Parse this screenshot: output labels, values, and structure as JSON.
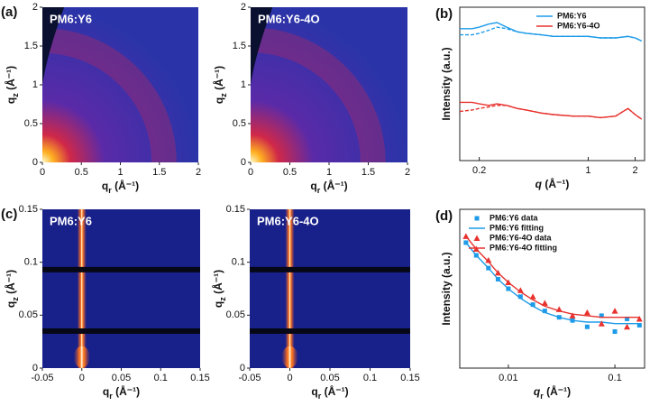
{
  "chart_data": [
    {
      "type": "image",
      "panel": "(a)",
      "title": "PM6:Y6",
      "pattern": "giwaxs",
      "xlabel": "q",
      "xlabel_sub": "r",
      "xlabel_unit": " (Å⁻¹)",
      "ylabel": "q",
      "ylabel_sub": "z",
      "ylabel_unit": " (Å⁻¹)",
      "xlim": [
        0,
        2
      ],
      "ylim": [
        0,
        2
      ],
      "xticks": [
        0,
        0.5,
        1,
        1.5,
        2
      ],
      "yticks": [
        0,
        0.5,
        1,
        1.5,
        2
      ]
    },
    {
      "type": "image",
      "title": "PM6:Y6-4O",
      "pattern": "giwaxs",
      "xlabel": "q",
      "xlabel_sub": "r",
      "xlabel_unit": " (Å⁻¹)",
      "ylabel": "q",
      "ylabel_sub": "z",
      "ylabel_unit": " (Å⁻¹)",
      "xlim": [
        0,
        2
      ],
      "ylim": [
        0,
        2
      ],
      "xticks": [
        0,
        0.5,
        1,
        1.5,
        2
      ],
      "yticks": [
        0,
        0.5,
        1,
        1.5,
        2
      ]
    },
    {
      "type": "line",
      "panel": "(b)",
      "xscale": "log",
      "legend": "upper right",
      "xlabel": "q",
      "xlabel_unit": " (Å⁻¹)",
      "ylabel": "Intensity (a.u.)",
      "xlim": [
        0.15,
        2.3
      ],
      "ylim": [
        0,
        10
      ],
      "xticks": [
        0.2,
        1,
        2
      ],
      "x": [
        0.15,
        0.18,
        0.2,
        0.23,
        0.26,
        0.3,
        0.35,
        0.4,
        0.5,
        0.6,
        0.8,
        1,
        1.2,
        1.5,
        1.8,
        2,
        2.2
      ],
      "series": [
        {
          "name": "PM6:Y6",
          "color": "#1e9be8",
          "values": [
            8.6,
            8.6,
            8.7,
            8.9,
            9.0,
            8.7,
            8.4,
            8.3,
            8.2,
            8.1,
            8.1,
            8.1,
            8.0,
            8.0,
            8.1,
            8.0,
            7.8
          ]
        },
        {
          "color": "#1e9be8",
          "dash": true,
          "values": [
            8.2,
            8.2,
            8.3,
            8.5,
            8.7,
            8.6,
            8.4,
            8.3,
            8.2,
            8.1,
            8.1,
            8.1,
            8.0,
            8.0,
            8.1,
            8.0,
            7.8
          ]
        },
        {
          "name": "PM6:Y6-4O",
          "color": "#e8322e",
          "values": [
            3.8,
            3.8,
            3.7,
            3.6,
            3.7,
            3.6,
            3.4,
            3.3,
            3.1,
            3.0,
            2.9,
            2.9,
            2.8,
            2.9,
            3.4,
            3.0,
            2.7
          ]
        },
        {
          "color": "#e8322e",
          "dash": true,
          "values": [
            3.2,
            3.3,
            3.4,
            3.5,
            3.6,
            3.6,
            3.4,
            3.3,
            3.1,
            3.0,
            2.9,
            2.9,
            2.8,
            2.9,
            3.4,
            3.0,
            2.7
          ]
        }
      ]
    },
    {
      "type": "image",
      "panel": "(c)",
      "title": "PM6:Y6",
      "pattern": "gisaxs",
      "xlabel": "q",
      "xlabel_sub": "r",
      "xlabel_unit": " (Å⁻¹)",
      "ylabel": "q",
      "ylabel_sub": "z",
      "ylabel_unit": " (Å⁻¹)",
      "xlim": [
        -0.05,
        0.15
      ],
      "ylim": [
        0,
        0.15
      ],
      "xticks": [
        -0.05,
        0,
        0.05,
        0.1,
        0.15
      ],
      "yticks": [
        0,
        0.05,
        0.1,
        0.15
      ]
    },
    {
      "type": "image",
      "title": "PM6:Y6-4O",
      "pattern": "gisaxs",
      "xlabel": "q",
      "xlabel_sub": "r",
      "xlabel_unit": " (Å⁻¹)",
      "ylabel": "q",
      "ylabel_sub": "z",
      "ylabel_unit": " (Å⁻¹)",
      "xlim": [
        -0.05,
        0.15
      ],
      "ylim": [
        0,
        0.15
      ],
      "xticks": [
        -0.05,
        0,
        0.05,
        0.1,
        0.15
      ],
      "yticks": [
        0,
        0.05,
        0.1,
        0.15
      ]
    },
    {
      "type": "scatter",
      "panel": "(d)",
      "xscale": "log",
      "legend": "upper left",
      "xlabel": "q",
      "xlabel_sub": "r",
      "xlabel_unit": " (Å⁻¹)",
      "ylabel": "Intensity (a.u.)",
      "xlim": [
        0.0035,
        0.19
      ],
      "ylim": [
        0,
        10
      ],
      "xticks": [
        0.01,
        0.1
      ],
      "x": [
        0.004,
        0.005,
        0.0065,
        0.008,
        0.01,
        0.013,
        0.017,
        0.022,
        0.03,
        0.04,
        0.055,
        0.075,
        0.1,
        0.13,
        0.17
      ],
      "series": [
        {
          "name": "PM6:Y6 data",
          "color": "#1e9be8",
          "marker": "square",
          "values": [
            7.9,
            7.1,
            6.3,
            5.6,
            5.0,
            4.5,
            4.0,
            3.6,
            3.2,
            3.0,
            2.6,
            3.3,
            2.3,
            3.1,
            2.7
          ]
        },
        {
          "name": "PM6:Y6 fitting",
          "color": "#1e9be8",
          "values": [
            7.9,
            7.1,
            6.3,
            5.6,
            5.0,
            4.4,
            3.9,
            3.5,
            3.2,
            3.0,
            2.9,
            2.9,
            2.8,
            2.8,
            2.8
          ]
        },
        {
          "name": "PM6:Y6-4O data",
          "color": "#e8322e",
          "marker": "triangle",
          "values": [
            8.3,
            7.5,
            6.8,
            6.0,
            5.4,
            4.9,
            4.5,
            4.1,
            3.7,
            3.3,
            3.5,
            2.8,
            3.6,
            2.6,
            3.1
          ]
        },
        {
          "name": "PM6:Y6-4O fitting",
          "color": "#e8322e",
          "values": [
            8.3,
            7.5,
            6.7,
            6.0,
            5.4,
            4.8,
            4.3,
            3.9,
            3.6,
            3.4,
            3.3,
            3.2,
            3.2,
            3.2,
            3.2
          ]
        }
      ]
    }
  ]
}
